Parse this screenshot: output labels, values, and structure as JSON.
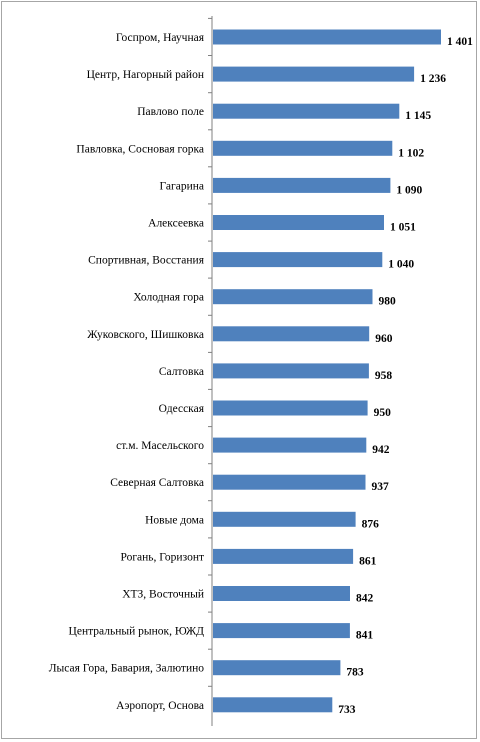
{
  "chart_data": {
    "type": "bar",
    "orientation": "horizontal",
    "categories": [
      "Госпром, Научная",
      "Центр, Нагорный район",
      "Павлово поле",
      "Павловка, Сосновая горка",
      "Гагарина",
      "Алексеевка",
      "Спортивная, Восстания",
      "Холодная гора",
      "Жуковского, Шишковка",
      "Салтовка",
      "Одесская",
      "ст.м. Масельского",
      "Северная Салтовка",
      "Новые дома",
      "Рогань, Горизонт",
      "ХТЗ, Восточный",
      "Центральный рынок, ЮЖД",
      "Лысая Гора, Бавария, Залютино",
      "Аэропорт, Основа"
    ],
    "values": [
      1401,
      1236,
      1145,
      1102,
      1090,
      1051,
      1040,
      980,
      960,
      958,
      950,
      942,
      937,
      876,
      861,
      842,
      841,
      783,
      733
    ],
    "value_labels": [
      "1 401",
      "1 236",
      "1 145",
      "1 102",
      "1 090",
      "1 051",
      "1 040",
      "980",
      "960",
      "958",
      "950",
      "942",
      "937",
      "876",
      "861",
      "842",
      "841",
      "783",
      "733"
    ],
    "bar_color": "#4f81bd",
    "xlim": [
      0,
      1401
    ],
    "grid": false,
    "legend": false
  }
}
